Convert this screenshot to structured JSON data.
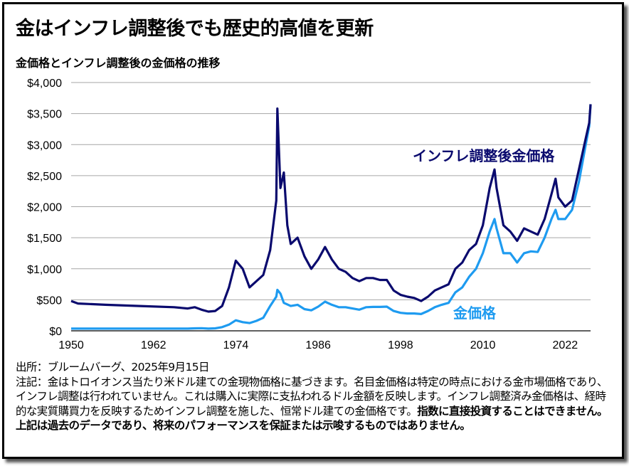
{
  "title": "金はインフレ調整後でも歴史的高値を更新",
  "chart_data": {
    "type": "line",
    "title": "金価格とインフレ調整後の金価格の推移",
    "xlabel": "",
    "ylabel": "",
    "xlim": [
      1950,
      2025.7
    ],
    "ylim": [
      0,
      4000
    ],
    "x_ticks": [
      "1950",
      "1962",
      "1974",
      "1986",
      "1998",
      "2010",
      "2022"
    ],
    "y_ticks": [
      "$0",
      "$500",
      "$1,000",
      "$1,500",
      "$2,000",
      "$2,500",
      "$3,000",
      "$3,500",
      "$4,000"
    ],
    "grid": "horizontal",
    "colors": {
      "adjusted": "#0a0a6e",
      "nominal": "#1e9bf0"
    },
    "series": [
      {
        "name": "インフレ調整後金価格",
        "x": [
          1950,
          1951,
          1955,
          1960,
          1965,
          1967,
          1968,
          1969,
          1970,
          1971,
          1972,
          1973,
          1974,
          1975,
          1976,
          1977,
          1978,
          1979,
          1979.9,
          1980.05,
          1980.5,
          1981,
          1981.5,
          1982,
          1983,
          1984,
          1985,
          1986,
          1987,
          1988,
          1989,
          1990,
          1991,
          1992,
          1993,
          1994,
          1995,
          1996,
          1997,
          1998,
          1999,
          2000,
          2001,
          2002,
          2003,
          2004,
          2005,
          2006,
          2007,
          2008,
          2009,
          2010,
          2011,
          2011.7,
          2012,
          2013,
          2014,
          2015,
          2016,
          2017,
          2018,
          2019,
          2020,
          2020.6,
          2021,
          2022,
          2023,
          2024,
          2025,
          2025.5,
          2025.7
        ],
        "values": [
          480,
          440,
          420,
          400,
          380,
          360,
          380,
          340,
          310,
          320,
          400,
          700,
          1130,
          1000,
          700,
          800,
          900,
          1300,
          2100,
          3580,
          2300,
          2550,
          1700,
          1400,
          1500,
          1200,
          1000,
          1150,
          1350,
          1150,
          1000,
          950,
          850,
          800,
          850,
          850,
          820,
          820,
          650,
          580,
          550,
          530,
          480,
          550,
          650,
          700,
          750,
          1000,
          1100,
          1300,
          1400,
          1700,
          2300,
          2600,
          2300,
          1700,
          1600,
          1450,
          1650,
          1600,
          1550,
          1800,
          2200,
          2450,
          2150,
          2000,
          2100,
          2600,
          3100,
          3350,
          3650
        ]
      },
      {
        "name": "金価格",
        "x": [
          1950,
          1955,
          1960,
          1965,
          1967,
          1968,
          1969,
          1970,
          1971,
          1972,
          1973,
          1974,
          1975,
          1976,
          1977,
          1978,
          1979,
          1979.9,
          1980.05,
          1980.5,
          1981,
          1982,
          1983,
          1984,
          1985,
          1986,
          1987,
          1988,
          1989,
          1990,
          1991,
          1992,
          1993,
          1994,
          1995,
          1996,
          1997,
          1998,
          1999,
          2000,
          2001,
          2002,
          2003,
          2004,
          2005,
          2006,
          2007,
          2008,
          2009,
          2010,
          2011,
          2011.7,
          2012,
          2013,
          2014,
          2015,
          2016,
          2017,
          2018,
          2019,
          2020,
          2020.6,
          2021,
          2022,
          2023,
          2024,
          2025,
          2025.5,
          2025.7
        ],
        "values": [
          35,
          35,
          35,
          35,
          35,
          40,
          42,
          36,
          40,
          60,
          100,
          170,
          140,
          125,
          160,
          210,
          400,
          550,
          660,
          600,
          450,
          400,
          420,
          350,
          330,
          390,
          470,
          420,
          380,
          380,
          360,
          340,
          380,
          385,
          385,
          390,
          320,
          290,
          280,
          280,
          270,
          320,
          380,
          420,
          450,
          620,
          700,
          870,
          1000,
          1250,
          1600,
          1800,
          1650,
          1250,
          1250,
          1100,
          1250,
          1280,
          1270,
          1500,
          1800,
          1950,
          1800,
          1800,
          1950,
          2400,
          3000,
          3300,
          3650
        ]
      }
    ]
  },
  "notes": {
    "source": "出所：ブルームバーグ、2025年9月15日",
    "note_regular": "注記：金はトロイオンス当たり米ドル建ての金現物価格に基づきます。名目金価格は特定の時点における金市場価格であり、インフレ調整は行われていません。これは購入に実際に支払われるドル金額を反映します。インフレ調整済み金価格は、経時的な実質購買力を反映するためインフレ調整を施した、恒常ドル建ての金価格です。",
    "note_bold": "指数に直接投資することはできません。上記は過去のデータであり、将来のパフォーマンスを保証または示唆するものではありません。"
  }
}
